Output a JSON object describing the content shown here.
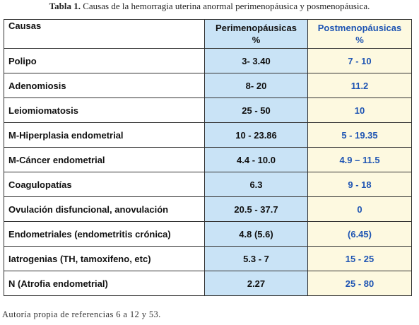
{
  "caption": {
    "label": "Tabla 1.",
    "text": "Causas de la hemorragia uterina anormal perimenopáusica y posmenopáusica."
  },
  "table": {
    "headers": {
      "causa": "Causas",
      "peri": "Perimenopáusicas",
      "peri_unit": "%",
      "post": "Postmenopáusicas",
      "post_unit": "%"
    },
    "rows": [
      {
        "causa": "Polipo",
        "peri": "3- 3.40",
        "post": "7 - 10"
      },
      {
        "causa": "Adenomiosis",
        "peri": "8- 20",
        "post": "11.2"
      },
      {
        "causa": "Leiomiomatosis",
        "peri": "25 - 50",
        "post": "10"
      },
      {
        "causa": "M-Hiperplasia endometrial",
        "peri": "10 - 23.86",
        "post": "5 - 19.35"
      },
      {
        "causa": "M-Cáncer endometrial",
        "peri": "4.4 - 10.0",
        "post": "4.9 – 11.5"
      },
      {
        "causa": "Coagulopatías",
        "peri": "6.3",
        "post": "9 - 18"
      },
      {
        "causa": "Ovulación disfuncional,  anovulación",
        "peri": "20.5 - 37.7",
        "post": "0"
      },
      {
        "causa": "Endometriales (endometritis crónica)",
        "peri": "4.8 (5.6)",
        "post": "(6.45)"
      },
      {
        "causa": "Iatrogenias (TH, tamoxifeno, etc)",
        "peri": "5.3 - 7",
        "post": "15 - 25"
      },
      {
        "causa": "N (Atrofia endometrial)",
        "peri": "2.27",
        "post": "25 - 80"
      }
    ]
  },
  "footer": "Autoría propia de referencias 6 a 12 y 53.",
  "colors": {
    "peri_bg": "#c9e3f6",
    "post_bg": "#fdf9e0",
    "post_text": "#1f55b3"
  }
}
